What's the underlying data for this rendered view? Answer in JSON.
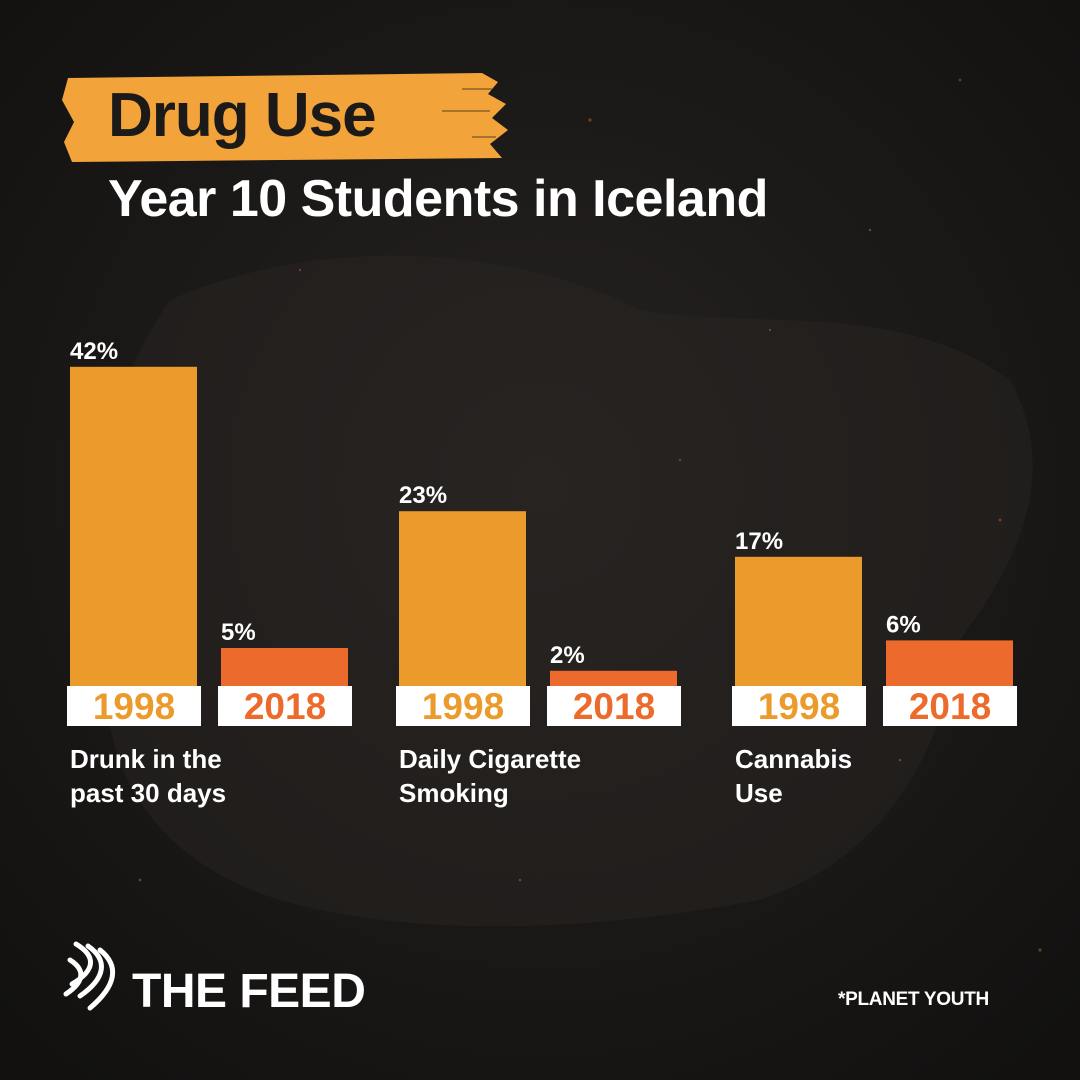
{
  "title": "Drug Use",
  "subtitle": "Year 10 Students in Iceland",
  "colors": {
    "background": "#1b1a19",
    "bar_1998": "#eb9b2b",
    "bar_2018": "#ec6a2b",
    "title_brush": "#f2a43a",
    "year_box": "#ffffff",
    "text": "#ffffff"
  },
  "brand": {
    "name": "THE FEED",
    "logo_icon": "sbs-logo-icon"
  },
  "source": "*PLANET YOUTH",
  "chart_data": {
    "type": "bar",
    "categories": [
      "Drunk in the past 30 days",
      "Daily Cigarette Smoking",
      "Cannabis Use"
    ],
    "category_lines": [
      [
        "Drunk in the",
        "past 30 days"
      ],
      [
        "Daily Cigarette",
        "Smoking"
      ],
      [
        "Cannabis",
        "Use"
      ]
    ],
    "series": [
      {
        "name": "1998",
        "values": [
          42,
          23,
          17
        ],
        "labels": [
          "42%",
          "23%",
          "17%"
        ]
      },
      {
        "name": "2018",
        "values": [
          5,
          2,
          6
        ],
        "labels": [
          "5%",
          "2%",
          "6%"
        ]
      }
    ],
    "unit": "%",
    "legend": "none",
    "grid": false
  }
}
